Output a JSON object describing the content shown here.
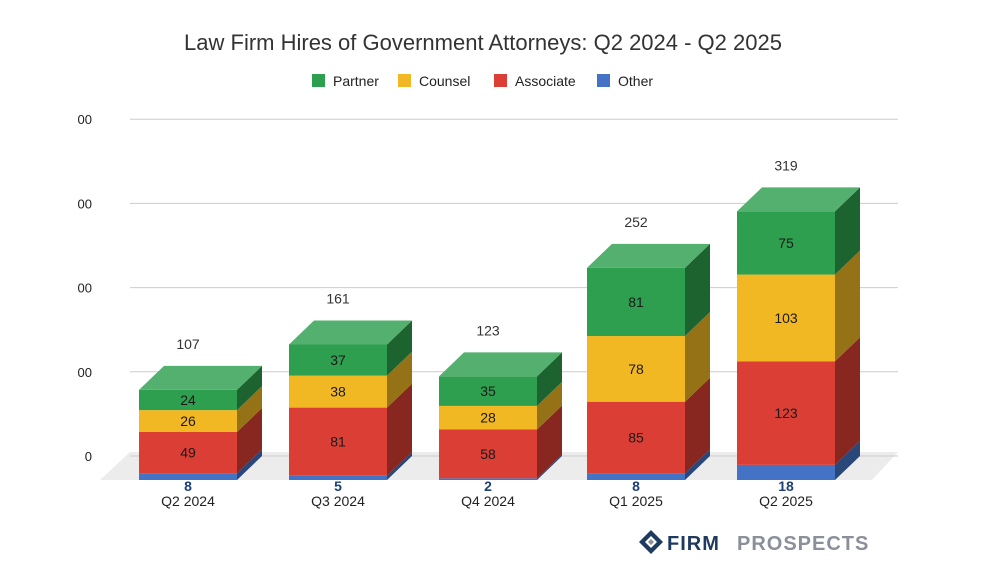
{
  "chart_data": {
    "type": "bar",
    "stacked": true,
    "three_d": true,
    "title": "Law Firm Hires of Government Attorneys:  Q2 2024 - Q2 2025",
    "categories": [
      "Q2 2024",
      "Q3 2024",
      "Q4 2024",
      "Q1 2025",
      "Q2 2025"
    ],
    "series": [
      {
        "name": "Other",
        "color": "#4472c4",
        "values": [
          8,
          5,
          2,
          8,
          18
        ]
      },
      {
        "name": "Associate",
        "color": "#db3e34",
        "values": [
          49,
          81,
          58,
          85,
          123
        ]
      },
      {
        "name": "Counsel",
        "color": "#f2b824",
        "values": [
          26,
          38,
          28,
          78,
          103
        ]
      },
      {
        "name": "Partner",
        "color": "#2e9f4e",
        "values": [
          24,
          37,
          35,
          81,
          75
        ]
      }
    ],
    "legend_order": [
      "Partner",
      "Counsel",
      "Associate",
      "Other"
    ],
    "totals": [
      107,
      161,
      123,
      252,
      319
    ],
    "y_ticks": [
      "0",
      "00",
      "00",
      "00",
      "00"
    ],
    "ylim": [
      0,
      400
    ],
    "grid": true,
    "legend_position": "top"
  },
  "brand": {
    "first": "FIRM",
    "second": "PROSPECTS",
    "logo_icon": "diamond-logo-icon"
  }
}
